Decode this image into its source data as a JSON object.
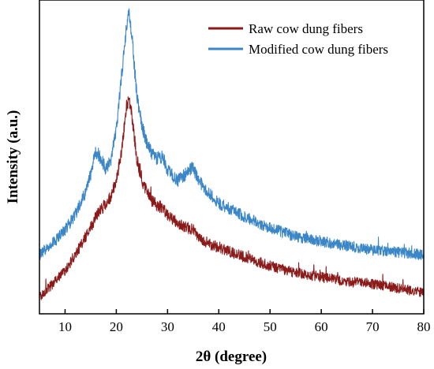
{
  "chart_data": {
    "type": "line",
    "title": "",
    "xlabel": "2θ (degree)",
    "ylabel": "Intensity (a.u.)",
    "xlim": [
      5,
      80
    ],
    "xticks": [
      "10",
      "20",
      "30",
      "40",
      "50",
      "60",
      "70",
      "80"
    ],
    "y_ticks_shown": false,
    "grid": false,
    "legend_position": "top-right",
    "series": [
      {
        "name": "Raw cow dung fibers",
        "color": "#8b1a1a",
        "x": [
          5,
          8,
          10,
          12,
          14,
          15,
          16,
          17,
          18,
          19,
          20,
          21,
          22,
          22.5,
          23,
          24,
          25,
          26,
          27,
          28,
          29,
          30,
          32,
          34,
          35,
          36,
          38,
          40,
          45,
          50,
          55,
          60,
          65,
          70,
          75,
          80
        ],
        "y": [
          0,
          0.07,
          0.12,
          0.19,
          0.27,
          0.31,
          0.36,
          0.39,
          0.42,
          0.45,
          0.52,
          0.65,
          0.85,
          0.88,
          0.82,
          0.62,
          0.52,
          0.47,
          0.43,
          0.41,
          0.4,
          0.37,
          0.33,
          0.31,
          0.3,
          0.27,
          0.24,
          0.22,
          0.18,
          0.14,
          0.11,
          0.09,
          0.07,
          0.06,
          0.04,
          0.02
        ]
      },
      {
        "name": "Modified cow dung fibers",
        "color": "#3b86c6",
        "x": [
          5,
          8,
          10,
          12,
          14,
          15,
          16,
          17,
          18,
          19,
          20,
          21,
          22,
          22.5,
          23,
          24,
          25,
          26,
          27,
          28,
          29,
          30,
          32,
          34,
          35,
          36,
          38,
          40,
          45,
          50,
          55,
          60,
          65,
          70,
          75,
          80
        ],
        "y": [
          0.19,
          0.25,
          0.3,
          0.37,
          0.47,
          0.55,
          0.65,
          0.62,
          0.57,
          0.62,
          0.75,
          0.98,
          1.22,
          1.27,
          1.18,
          0.9,
          0.76,
          0.69,
          0.64,
          0.62,
          0.63,
          0.57,
          0.52,
          0.56,
          0.58,
          0.52,
          0.47,
          0.42,
          0.36,
          0.31,
          0.27,
          0.25,
          0.23,
          0.21,
          0.2,
          0.19
        ]
      }
    ]
  }
}
